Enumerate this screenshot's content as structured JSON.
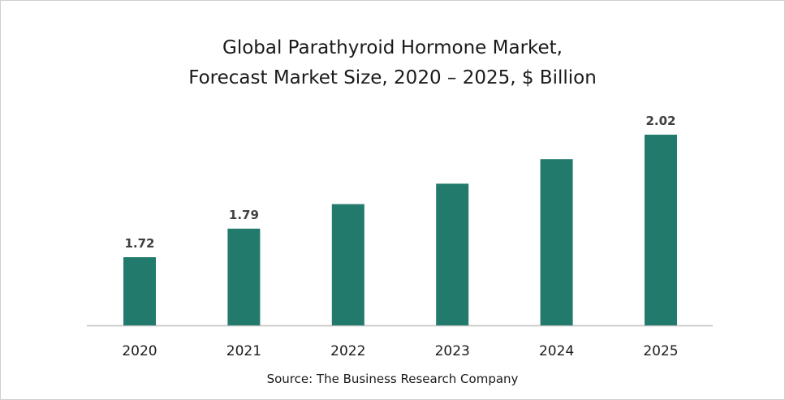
{
  "chart_data": {
    "type": "bar",
    "title_line1": "Global Parathyroid Hormone Market,",
    "title_line2": "Forecast Market Size, 2020 – 2025, $ Billion",
    "categories": [
      "2020",
      "2021",
      "2022",
      "2023",
      "2024",
      "2025"
    ],
    "values": [
      1.72,
      1.79,
      1.85,
      1.9,
      1.96,
      2.02
    ],
    "data_labels": [
      "1.72",
      "1.79",
      "",
      "",
      "",
      "2.02"
    ],
    "bar_color": "#217a6b",
    "axis_color": "#bfbfbf",
    "grid": false,
    "legend": "none"
  },
  "source_text": "Source: The Business Research Company"
}
